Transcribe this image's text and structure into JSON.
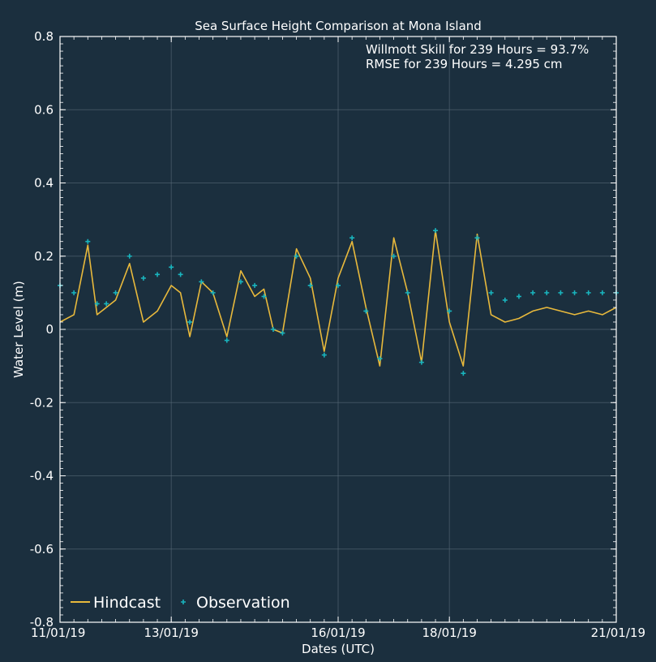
{
  "chart_data": {
    "type": "line",
    "title": "Sea Surface Height Comparison at Mona Island",
    "xlabel": "Dates (UTC)",
    "ylabel": "Water Level (m)",
    "ylim": [
      -0.8,
      0.8
    ],
    "yticks": [
      -0.8,
      -0.6,
      -0.4,
      -0.2,
      0.0,
      0.2,
      0.4,
      0.6,
      0.8
    ],
    "yticklabels": [
      "-0.8",
      "-0.6",
      "-0.4",
      "-0.2",
      "0",
      "0.2",
      "0.4",
      "0.6",
      "0.8"
    ],
    "xlim": [
      "2019-01-11T00:00",
      "2019-01-21T00:00"
    ],
    "xticks": [
      "2019-01-11",
      "2019-01-13",
      "2019-01-16",
      "2019-01-18",
      "2019-01-21"
    ],
    "xticklabels": [
      "11/01/19",
      "13/01/19",
      "16/01/19",
      "18/01/19",
      "21/01/19"
    ],
    "grid": true,
    "legend": "bottom-left",
    "annotations": [
      "Willmott Skill for 239 Hours = 93.7%",
      "RMSE for 239 Hours = 4.295 cm"
    ],
    "colors": {
      "background": "#1b2f3e",
      "hindcast": "#e8b93c",
      "observation": "#19b4bd",
      "grid": "#5d6f7c",
      "text": "#ffffff"
    },
    "series": [
      {
        "name": "Hindcast",
        "style": "line",
        "x": [
          "2019-01-11T00:00",
          "2019-01-11T06:00",
          "2019-01-11T12:00",
          "2019-01-11T16:00",
          "2019-01-11T20:00",
          "2019-01-12T00:00",
          "2019-01-12T06:00",
          "2019-01-12T12:00",
          "2019-01-12T18:00",
          "2019-01-13T00:00",
          "2019-01-13T04:00",
          "2019-01-13T08:00",
          "2019-01-13T13:00",
          "2019-01-13T18:00",
          "2019-01-14T00:00",
          "2019-01-14T06:00",
          "2019-01-14T12:00",
          "2019-01-14T16:00",
          "2019-01-14T20:00",
          "2019-01-15T00:00",
          "2019-01-15T06:00",
          "2019-01-15T12:00",
          "2019-01-15T18:00",
          "2019-01-16T00:00",
          "2019-01-16T06:00",
          "2019-01-16T12:00",
          "2019-01-16T18:00",
          "2019-01-17T00:00",
          "2019-01-17T06:00",
          "2019-01-17T12:00",
          "2019-01-17T18:00",
          "2019-01-18T00:00",
          "2019-01-18T06:00",
          "2019-01-18T12:00",
          "2019-01-18T18:00",
          "2019-01-19T00:00",
          "2019-01-19T06:00",
          "2019-01-19T12:00",
          "2019-01-19T18:00",
          "2019-01-20T00:00",
          "2019-01-20T06:00",
          "2019-01-20T12:00",
          "2019-01-20T18:00",
          "2019-01-21T00:00"
        ],
        "values": [
          0.02,
          0.04,
          0.23,
          0.04,
          0.06,
          0.08,
          0.18,
          0.02,
          0.05,
          0.12,
          0.1,
          -0.02,
          0.13,
          0.1,
          -0.02,
          0.16,
          0.09,
          0.11,
          0.0,
          -0.01,
          0.22,
          0.14,
          -0.06,
          0.14,
          0.24,
          0.06,
          -0.1,
          0.25,
          0.1,
          -0.09,
          0.27,
          0.02,
          -0.1,
          0.26,
          0.04,
          0.02,
          0.03,
          0.05,
          0.06,
          0.05,
          0.04,
          0.05,
          0.04,
          0.06
        ]
      },
      {
        "name": "Observation",
        "style": "markers",
        "x": [
          "2019-01-11T00:00",
          "2019-01-11T06:00",
          "2019-01-11T12:00",
          "2019-01-11T16:00",
          "2019-01-11T20:00",
          "2019-01-12T00:00",
          "2019-01-12T06:00",
          "2019-01-12T12:00",
          "2019-01-12T18:00",
          "2019-01-13T00:00",
          "2019-01-13T04:00",
          "2019-01-13T08:00",
          "2019-01-13T13:00",
          "2019-01-13T18:00",
          "2019-01-14T00:00",
          "2019-01-14T06:00",
          "2019-01-14T12:00",
          "2019-01-14T16:00",
          "2019-01-14T20:00",
          "2019-01-15T00:00",
          "2019-01-15T06:00",
          "2019-01-15T12:00",
          "2019-01-15T18:00",
          "2019-01-16T00:00",
          "2019-01-16T06:00",
          "2019-01-16T12:00",
          "2019-01-16T18:00",
          "2019-01-17T00:00",
          "2019-01-17T06:00",
          "2019-01-17T12:00",
          "2019-01-17T18:00",
          "2019-01-18T00:00",
          "2019-01-18T06:00",
          "2019-01-18T12:00",
          "2019-01-18T18:00",
          "2019-01-19T00:00",
          "2019-01-19T06:00",
          "2019-01-19T12:00",
          "2019-01-19T18:00",
          "2019-01-20T00:00",
          "2019-01-20T06:00",
          "2019-01-20T12:00",
          "2019-01-20T18:00",
          "2019-01-21T00:00"
        ],
        "values": [
          0.12,
          0.1,
          0.24,
          0.07,
          0.07,
          0.1,
          0.2,
          0.14,
          0.15,
          0.17,
          0.15,
          0.02,
          0.13,
          0.1,
          -0.03,
          0.13,
          0.12,
          0.09,
          0.0,
          -0.01,
          0.2,
          0.12,
          -0.07,
          0.12,
          0.25,
          0.05,
          -0.08,
          0.2,
          0.1,
          -0.09,
          0.27,
          0.05,
          -0.12,
          0.25,
          0.1,
          0.08,
          0.09,
          0.1,
          0.1,
          0.1,
          0.1,
          0.1,
          0.1,
          0.1
        ]
      }
    ]
  }
}
